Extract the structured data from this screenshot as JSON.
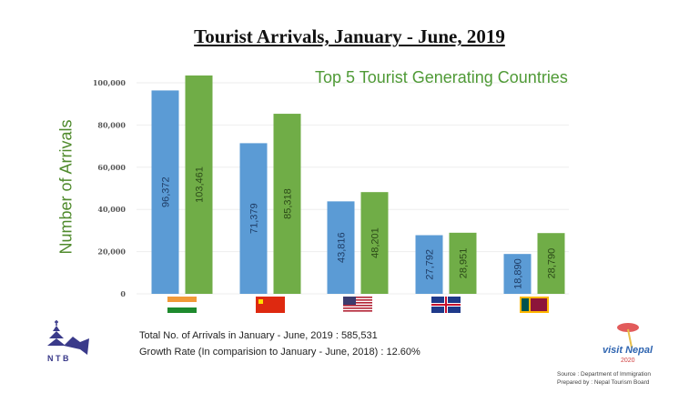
{
  "chart_data": {
    "type": "bar",
    "title": "Tourist Arrivals, January - June, 2019",
    "subtitle": "Top 5 Tourist Generating Countries",
    "ylabel": "Number of Arrivals",
    "xlabel": "",
    "ylim": [
      0,
      100000
    ],
    "yticks": [
      0,
      20000,
      40000,
      60000,
      80000,
      100000
    ],
    "ytick_labels": [
      "0",
      "20,000",
      "40,000",
      "60,000",
      "80,000",
      "100,000"
    ],
    "categories": [
      "India",
      "China",
      "USA",
      "UK",
      "Sri Lanka"
    ],
    "category_icons": [
      "india-flag-icon",
      "china-flag-icon",
      "usa-flag-icon",
      "uk-flag-icon",
      "sri-lanka-flag-icon"
    ],
    "series": [
      {
        "color": "#5b9bd5",
        "values": [
          96372,
          71379,
          43816,
          27792,
          18890
        ],
        "labels": [
          "96,372",
          "71,379",
          "43,816",
          "27,792",
          "18,890"
        ]
      },
      {
        "color": "#70ad47",
        "values": [
          103461,
          85318,
          48201,
          28951,
          28790
        ],
        "labels": [
          "103,461",
          "85,318",
          "48,201",
          "28,951",
          "28,790"
        ]
      }
    ],
    "grid": true,
    "legend": "none"
  },
  "summary": {
    "total": "Total No. of Arrivals in January - June, 2019 : 585,531",
    "growth": "Growth Rate (In comparision to January - June, 2018) : 12.60%"
  },
  "source": {
    "line1": "Source : Department of Immigration",
    "line2": "Prepared by : Nepal Tourism Board"
  },
  "logos": {
    "ntb": "NTB",
    "visit": "visit Nepal 2020"
  }
}
